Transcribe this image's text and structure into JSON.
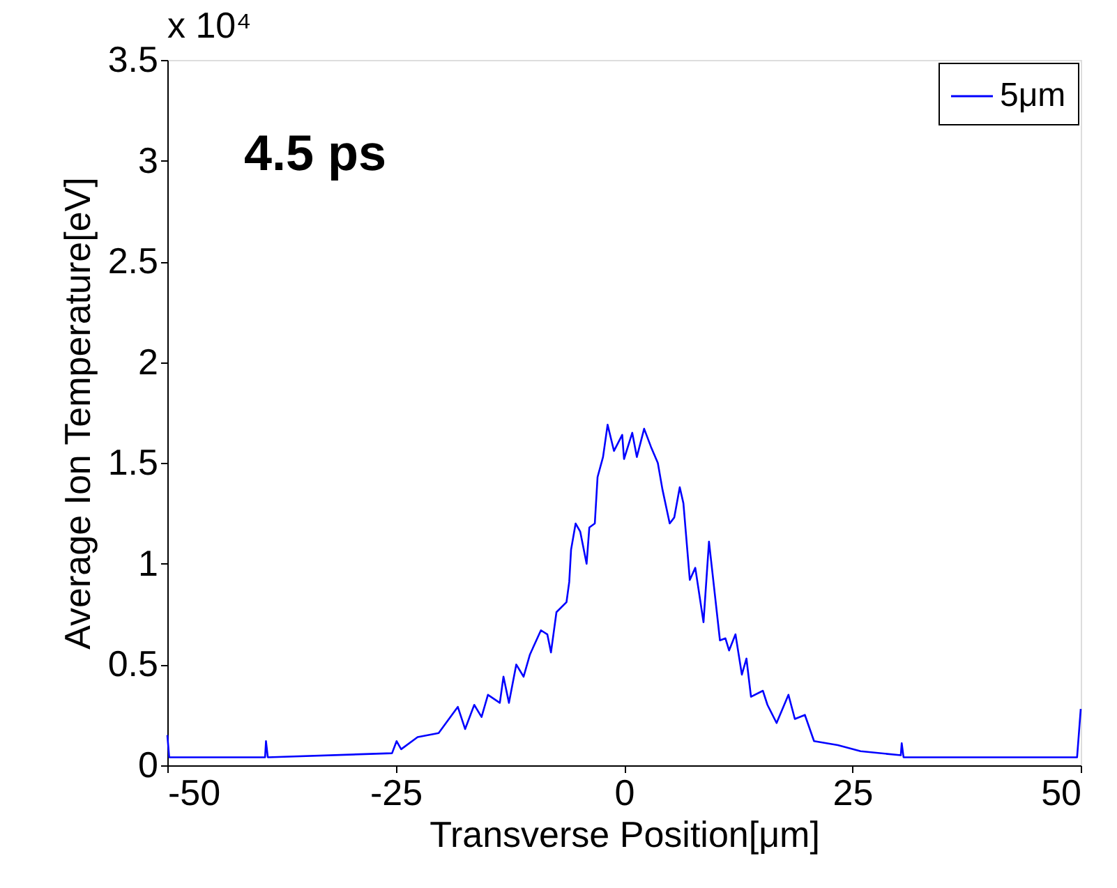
{
  "chart_data": {
    "type": "line",
    "xlabel": "Transverse Position[μm]",
    "ylabel": "Average Ion Temperature[eV]",
    "annotations": [
      "x 10⁴",
      "4.5 ps"
    ],
    "xlim": [
      -50,
      50
    ],
    "xticks": [
      -50,
      -25,
      0,
      25,
      50
    ],
    "ylim": [
      0,
      3.5
    ],
    "yticks": [
      0,
      0.5,
      1,
      1.5,
      2,
      2.5,
      3,
      3.5
    ],
    "grid": false,
    "legend": "top right",
    "line_style": "solid",
    "marker": "none",
    "series": [
      {
        "name": "5μm",
        "color": "#0000ff",
        "x": [
          -50,
          -49.8,
          -39.3,
          -39.2,
          -39,
          -25.4,
          -24.9,
          -24.4,
          -22.6,
          -20.3,
          -18.2,
          -17.4,
          -16.4,
          -15.6,
          -14.9,
          -13.6,
          -13.2,
          -12.6,
          -11.8,
          -11.0,
          -10.3,
          -9.1,
          -8.4,
          -8.0,
          -7.4,
          -6.3,
          -6.0,
          -5.8,
          -5.3,
          -4.8,
          -4.1,
          -3.8,
          -3.2,
          -2.9,
          -2.3,
          -1.8,
          -1.1,
          -0.2,
          0,
          0.9,
          1.4,
          2.2,
          2.95,
          3.7,
          4.2,
          5.0,
          5.5,
          6.1,
          6.5,
          7.2,
          7.8,
          8.7,
          9.3,
          10.5,
          11.1,
          11.5,
          12.2,
          12.9,
          13.4,
          13.9,
          15.2,
          15.7,
          16.7,
          18.0,
          18.7,
          19.8,
          20.8,
          23.4,
          25.9,
          30.3,
          30.4,
          30.6,
          49.6,
          50
        ],
        "values": [
          0.15,
          0.04,
          0.04,
          0.12,
          0.04,
          0.06,
          0.12,
          0.08,
          0.14,
          0.16,
          0.29,
          0.18,
          0.3,
          0.24,
          0.35,
          0.31,
          0.44,
          0.31,
          0.5,
          0.44,
          0.55,
          0.67,
          0.65,
          0.56,
          0.76,
          0.81,
          0.91,
          1.07,
          1.2,
          1.16,
          1.0,
          1.18,
          1.2,
          1.43,
          1.53,
          1.69,
          1.56,
          1.64,
          1.52,
          1.65,
          1.53,
          1.67,
          1.58,
          1.5,
          1.37,
          1.2,
          1.23,
          1.38,
          1.3,
          0.92,
          0.98,
          0.71,
          1.11,
          0.62,
          0.63,
          0.57,
          0.65,
          0.45,
          0.53,
          0.34,
          0.37,
          0.3,
          0.21,
          0.35,
          0.23,
          0.25,
          0.12,
          0.1,
          0.07,
          0.05,
          0.11,
          0.04,
          0.04,
          0.28
        ]
      }
    ]
  }
}
